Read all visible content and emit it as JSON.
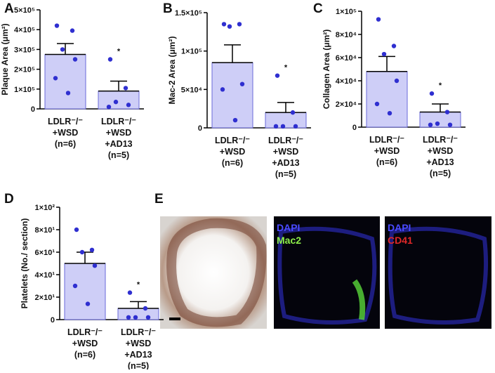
{
  "chart_data": [
    {
      "type": "bar",
      "letter": "A",
      "ylabel": "Plaque Area (μm²)",
      "categories": [
        [
          "LDLR⁻/⁻",
          "+WSD",
          "(n=6)"
        ],
        [
          "LDLR⁻/⁻",
          "+WSD",
          "+AD13",
          "(n=5)"
        ]
      ],
      "values": [
        275000,
        90000
      ],
      "errors": [
        55000,
        50000
      ],
      "points": [
        [
          420000,
          395000,
          300000,
          250000,
          155000,
          80000
        ],
        [
          250000,
          105000,
          35000,
          20000,
          10000
        ]
      ],
      "annotation": "*",
      "color": "#c9c9f6",
      "edge_color": "#6a6ad8",
      "point_color": "#2f2fd0",
      "ylim": [
        0,
        500000
      ],
      "yticks": [
        0,
        {
          "value": 100000,
          "label": "1×10⁵"
        },
        {
          "value": 200000,
          "label": "2×10⁵"
        },
        {
          "value": 300000,
          "label": "3×10⁵"
        },
        {
          "value": 400000,
          "label": "4×10⁵"
        },
        {
          "value": 500000,
          "label": "5×10⁵"
        }
      ]
    },
    {
      "type": "bar",
      "letter": "B",
      "ylabel": "Mac-2 Area (μm²)",
      "categories": [
        [
          "LDLR⁻/⁻",
          "+WSD",
          "(n=6)"
        ],
        [
          "LDLR⁻/⁻",
          "+WSD",
          "+AD13",
          "(n=5)"
        ]
      ],
      "values": [
        85000,
        20000
      ],
      "errors": [
        23000,
        13000
      ],
      "points": [
        [
          135000,
          135000,
          132000,
          57000,
          50000,
          10000
        ],
        [
          68000,
          20000,
          2000,
          2000,
          2000
        ]
      ],
      "annotation": "*",
      "color": "#c9c9f6",
      "edge_color": "#6a6ad8",
      "point_color": "#2f2fd0",
      "ylim": [
        0,
        150000
      ],
      "yticks": [
        0,
        {
          "value": 50000,
          "label": "5×10⁴"
        },
        {
          "value": 100000,
          "label": "1×10⁵"
        },
        {
          "value": 150000,
          "label": "1.5×10⁵"
        }
      ]
    },
    {
      "type": "bar",
      "letter": "C",
      "ylabel": "Collagen Area  (μm²)",
      "categories": [
        [
          "LDLR⁻/⁻",
          "+WSD",
          "(n=6)"
        ],
        [
          "LDLR⁻/⁻",
          "+WSD",
          "+AD13",
          "(n=5)"
        ]
      ],
      "values": [
        48000,
        13000
      ],
      "errors": [
        13000,
        7000
      ],
      "points": [
        [
          93000,
          70000,
          63000,
          40000,
          20000,
          12000
        ],
        [
          29000,
          13000,
          3000,
          2000,
          2000
        ]
      ],
      "annotation": "*",
      "color": "#c9c9f6",
      "edge_color": "#6a6ad8",
      "point_color": "#2f2fd0",
      "ylim": [
        0,
        100000
      ],
      "yticks": [
        0,
        {
          "value": 20000,
          "label": "2×10⁴"
        },
        {
          "value": 40000,
          "label": "4×10⁴"
        },
        {
          "value": 60000,
          "label": "6×10⁴"
        },
        {
          "value": 80000,
          "label": "8×10⁴"
        },
        {
          "value": 100000,
          "label": "1×10⁵"
        }
      ]
    },
    {
      "type": "bar",
      "letter": "D",
      "ylabel": "Platelets (No./ section)",
      "categories": [
        [
          "LDLR⁻/⁻",
          "+WSD",
          "(n=6)"
        ],
        [
          "LDLR⁻/⁻",
          "+WSD",
          "+AD13",
          "(n=5)"
        ]
      ],
      "values": [
        50,
        10
      ],
      "errors": [
        10,
        6
      ],
      "points": [
        [
          80,
          62,
          60,
          48,
          30,
          14
        ],
        [
          24,
          10,
          2,
          2,
          2
        ]
      ],
      "annotation": "*",
      "color": "#c9c9f6",
      "edge_color": "#6a6ad8",
      "point_color": "#2f2fd0",
      "ylim": [
        0,
        100
      ],
      "yticks": [
        0,
        {
          "value": 20,
          "label": "2×10¹"
        },
        {
          "value": 40,
          "label": "4×10¹"
        },
        {
          "value": 60,
          "label": "6×10¹"
        },
        {
          "value": 80,
          "label": "8×10¹"
        },
        {
          "value": 100,
          "label": "1×10²"
        }
      ]
    }
  ],
  "image_panel": {
    "letter": "E",
    "stain_1": [
      "DAPI",
      "Mac2"
    ],
    "stain_2": [
      "DAPI",
      "CD41"
    ]
  }
}
